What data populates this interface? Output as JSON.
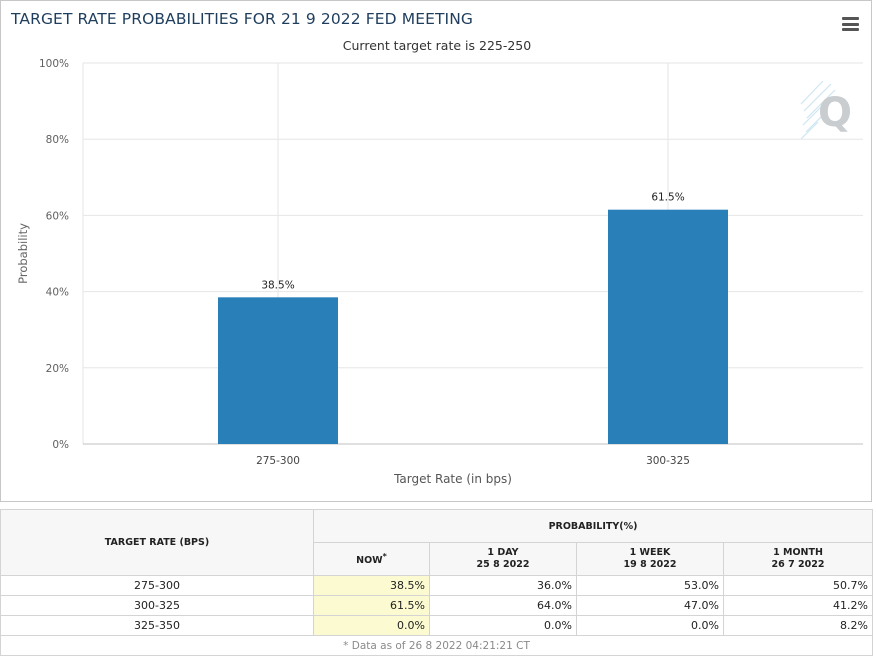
{
  "chart": {
    "title": "TARGET RATE PROBABILITIES FOR 21 9 2022 FED MEETING",
    "subtitle": "Current target rate is 225-250",
    "menu_icon": "hamburger-menu-icon",
    "watermark": "Q"
  },
  "chart_data": {
    "type": "bar",
    "categories": [
      "275-300",
      "300-325"
    ],
    "values": [
      38.5,
      61.5
    ],
    "data_labels": [
      "38.5%",
      "61.5%"
    ],
    "xlabel": "Target Rate (in bps)",
    "ylabel": "Probability",
    "ylim": [
      0,
      100
    ],
    "yticks": [
      "0%",
      "20%",
      "40%",
      "60%",
      "80%",
      "100%"
    ],
    "grid": true,
    "bar_color": "#2980b9"
  },
  "table": {
    "col1_header": "TARGET RATE (BPS)",
    "group_header": "PROBABILITY(%)",
    "sub_headers": [
      {
        "label": "NOW",
        "date": "",
        "mark": "*"
      },
      {
        "label": "1 DAY",
        "date": "25 8 2022"
      },
      {
        "label": "1 WEEK",
        "date": "19 8 2022"
      },
      {
        "label": "1 MONTH",
        "date": "26 7 2022"
      }
    ],
    "rows": [
      {
        "rate": "275-300",
        "now": "38.5%",
        "day": "36.0%",
        "week": "53.0%",
        "month": "50.7%"
      },
      {
        "rate": "300-325",
        "now": "61.5%",
        "day": "64.0%",
        "week": "47.0%",
        "month": "41.2%"
      },
      {
        "rate": "325-350",
        "now": "0.0%",
        "day": "0.0%",
        "week": "0.0%",
        "month": "8.2%"
      }
    ],
    "footer": "* Data as of 26 8 2022 04:21:21 CT",
    "highlight_color": "#fbfad0"
  }
}
